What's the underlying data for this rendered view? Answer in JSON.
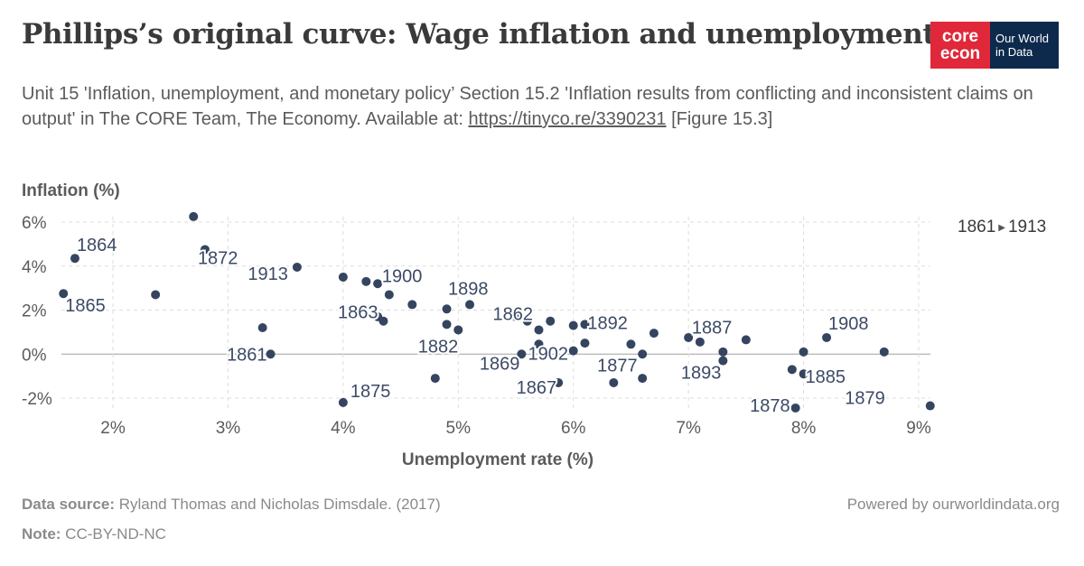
{
  "header": {
    "title": "Phillips’s original curve: Wage inflation and unemployment",
    "subtitle_text": "Unit 15 'Inflation, unemployment, and monetary policy’ Section 15.2 'Inflation results from conflicting and inconsistent claims on output' in The CORE Team, The Economy. Available at: ",
    "subtitle_link": "https://tinyco.re/3390231",
    "subtitle_suffix": " [Figure 15.3]"
  },
  "logo": {
    "core_line1": "core",
    "core_line2": "econ",
    "owid_line1": "Our World",
    "owid_line2": "in Data"
  },
  "legend": {
    "start": "1861",
    "end": "1913"
  },
  "footer": {
    "source_label": "Data source:",
    "source_text": " Ryland Thomas and Nicholas Dimsdale. (2017)",
    "note_label": "Note:",
    "note_text": " CC-BY-ND-NC",
    "powered": "Powered by ourworldindata.org"
  },
  "colors": {
    "point": "#354560",
    "label": "#3c4a66",
    "grid": "#dddddd",
    "zero": "#a0a0a0"
  },
  "chart_data": {
    "type": "scatter",
    "xlabel": "Unemployment rate (%)",
    "ylabel": "Inflation (%)",
    "xlim": [
      1.55,
      9.1
    ],
    "ylim": [
      -2.5,
      6.3
    ],
    "xticks": [
      2,
      3,
      4,
      5,
      6,
      7,
      8,
      9
    ],
    "xtick_labels": [
      "2%",
      "3%",
      "4%",
      "5%",
      "6%",
      "7%",
      "8%",
      "9%"
    ],
    "yticks": [
      -2,
      0,
      2,
      4,
      6
    ],
    "ytick_labels": [
      "-2%",
      "0%",
      "2%",
      "4%",
      "6%"
    ],
    "grid": true,
    "points": [
      {
        "x": 1.67,
        "y": 4.35,
        "label": "1864"
      },
      {
        "x": 1.57,
        "y": 2.75,
        "label": "1865"
      },
      {
        "x": 2.37,
        "y": 2.7
      },
      {
        "x": 2.7,
        "y": 6.25
      },
      {
        "x": 2.8,
        "y": 4.75,
        "label": "1872"
      },
      {
        "x": 3.3,
        "y": 1.2
      },
      {
        "x": 3.37,
        "y": 0.0,
        "label": "1861"
      },
      {
        "x": 3.6,
        "y": 3.95,
        "label": "1913"
      },
      {
        "x": 4.0,
        "y": 3.5
      },
      {
        "x": 4.0,
        "y": -2.2,
        "label": "1875"
      },
      {
        "x": 4.2,
        "y": 3.3
      },
      {
        "x": 4.3,
        "y": 3.2
      },
      {
        "x": 4.3,
        "y": 1.7
      },
      {
        "x": 4.35,
        "y": 1.5,
        "label": "1863"
      },
      {
        "x": 4.4,
        "y": 2.7,
        "label": "1900"
      },
      {
        "x": 4.6,
        "y": 2.25
      },
      {
        "x": 4.8,
        "y": -1.1
      },
      {
        "x": 4.9,
        "y": 2.05
      },
      {
        "x": 4.9,
        "y": 1.35
      },
      {
        "x": 5.0,
        "y": 1.1,
        "label": "1882"
      },
      {
        "x": 5.1,
        "y": 2.25,
        "label": "1898"
      },
      {
        "x": 5.5,
        "y": 1.7
      },
      {
        "x": 5.55,
        "y": 0.0,
        "label": "1869"
      },
      {
        "x": 5.6,
        "y": 1.5
      },
      {
        "x": 5.7,
        "y": 1.1
      },
      {
        "x": 5.7,
        "y": 0.45,
        "label": "1902"
      },
      {
        "x": 5.8,
        "y": 1.5
      },
      {
        "x": 5.87,
        "y": -1.3,
        "label": "1867"
      },
      {
        "x": 6.0,
        "y": 1.3
      },
      {
        "x": 6.0,
        "y": 0.15
      },
      {
        "x": 6.1,
        "y": 1.35,
        "label": "1862"
      },
      {
        "x": 6.1,
        "y": 0.5
      },
      {
        "x": 6.35,
        "y": -1.3
      },
      {
        "x": 6.5,
        "y": 0.45,
        "label": "1892"
      },
      {
        "x": 6.6,
        "y": 0.0,
        "label": "1877"
      },
      {
        "x": 6.6,
        "y": -1.1
      },
      {
        "x": 6.7,
        "y": 0.95
      },
      {
        "x": 7.0,
        "y": 0.75
      },
      {
        "x": 7.1,
        "y": 0.55
      },
      {
        "x": 7.3,
        "y": 0.1
      },
      {
        "x": 7.3,
        "y": -0.3,
        "label": "1893"
      },
      {
        "x": 7.5,
        "y": 0.65,
        "label": "1887"
      },
      {
        "x": 7.9,
        "y": -0.7
      },
      {
        "x": 7.93,
        "y": -2.45,
        "label": "1878"
      },
      {
        "x": 8.0,
        "y": 0.1
      },
      {
        "x": 8.0,
        "y": -0.9,
        "label": "1885"
      },
      {
        "x": 8.2,
        "y": 0.75,
        "label": "1908"
      },
      {
        "x": 8.7,
        "y": 0.1
      },
      {
        "x": 9.1,
        "y": -2.35,
        "label": "1879"
      }
    ]
  }
}
